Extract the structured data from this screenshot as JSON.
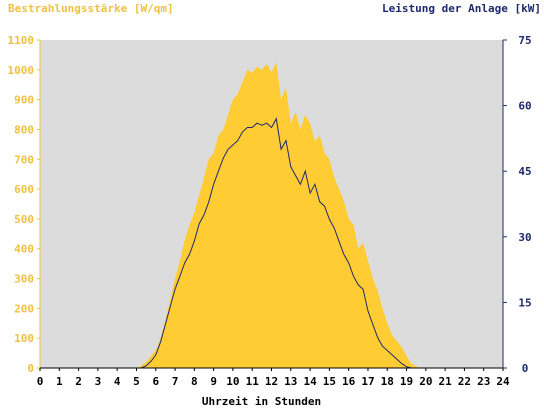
{
  "colors": {
    "background": "#ffffff",
    "plot_background": "#dcdcdc",
    "irradiance": "#ffcc33",
    "power": "#1f2a6e",
    "left_axis_text": "#f0c040",
    "right_axis_text": "#1f2a6e",
    "x_axis_text": "#000000"
  },
  "chart_data": {
    "type": "area",
    "title_left": "Bestrahlungsstärke [W/qm]",
    "title_right": "Leistung der Anlage [kW]",
    "xlabel": "Uhrzeit in Stunden",
    "x_ticks": [
      "0",
      "1",
      "2",
      "3",
      "4",
      "5",
      "6",
      "7",
      "8",
      "9",
      "10",
      "11",
      "12",
      "13",
      "14",
      "15",
      "16",
      "17",
      "18",
      "19",
      "20",
      "21",
      "22",
      "23",
      "24"
    ],
    "y_left_ticks": [
      "0",
      "100",
      "200",
      "300",
      "400",
      "500",
      "600",
      "700",
      "800",
      "900",
      "1000",
      "1100"
    ],
    "y_right_ticks": [
      "0",
      "15",
      "30",
      "45",
      "60",
      "75"
    ],
    "xlim": [
      0,
      24
    ],
    "ylim_left": [
      0,
      1100
    ],
    "ylim_right": [
      0,
      75
    ],
    "series": [
      {
        "name": "Bestrahlungsstärke",
        "axis": "left",
        "style": "area",
        "x": [
          0,
          5.0,
          5.25,
          5.5,
          5.75,
          6.0,
          6.25,
          6.5,
          6.75,
          7.0,
          7.25,
          7.5,
          7.75,
          8.0,
          8.25,
          8.5,
          8.75,
          9.0,
          9.25,
          9.5,
          9.75,
          10.0,
          10.25,
          10.5,
          10.75,
          11.0,
          11.25,
          11.5,
          11.75,
          12.0,
          12.25,
          12.5,
          12.75,
          13.0,
          13.25,
          13.5,
          13.75,
          14.0,
          14.25,
          14.5,
          14.75,
          15.0,
          15.25,
          15.5,
          15.75,
          16.0,
          16.25,
          16.5,
          16.75,
          17.0,
          17.25,
          17.5,
          17.75,
          18.0,
          18.25,
          18.5,
          18.75,
          19.0,
          19.25,
          19.5,
          19.75,
          20.0,
          24
        ],
        "y": [
          0,
          0,
          8,
          20,
          40,
          60,
          100,
          160,
          230,
          300,
          360,
          430,
          480,
          520,
          580,
          640,
          700,
          720,
          780,
          800,
          850,
          900,
          920,
          960,
          1000,
          990,
          1010,
          1000,
          1020,
          990,
          1025,
          900,
          940,
          820,
          860,
          800,
          850,
          820,
          760,
          780,
          720,
          700,
          640,
          600,
          560,
          500,
          480,
          400,
          420,
          360,
          300,
          260,
          200,
          150,
          110,
          90,
          70,
          40,
          15,
          5,
          0,
          0,
          0
        ]
      },
      {
        "name": "Leistung",
        "axis": "right",
        "style": "line",
        "x": [
          0,
          5.25,
          5.5,
          5.75,
          6.0,
          6.25,
          6.5,
          6.75,
          7.0,
          7.25,
          7.5,
          7.75,
          8.0,
          8.25,
          8.5,
          8.75,
          9.0,
          9.25,
          9.5,
          9.75,
          10.0,
          10.25,
          10.5,
          10.75,
          11.0,
          11.25,
          11.5,
          11.75,
          12.0,
          12.25,
          12.5,
          12.75,
          13.0,
          13.25,
          13.5,
          13.75,
          14.0,
          14.25,
          14.5,
          14.75,
          15.0,
          15.25,
          15.5,
          15.75,
          16.0,
          16.25,
          16.5,
          16.75,
          17.0,
          17.25,
          17.5,
          17.75,
          18.0,
          18.25,
          18.5,
          18.75,
          19.0,
          19.25,
          19.5,
          19.75,
          24
        ],
        "y": [
          0,
          0,
          0.5,
          1.5,
          3,
          6,
          10,
          14,
          18,
          21,
          24,
          26,
          29,
          33,
          35,
          38,
          42,
          45,
          48,
          50,
          51,
          52,
          54,
          55,
          55,
          56,
          55.5,
          56,
          55,
          57,
          50,
          52,
          46,
          44,
          42,
          45,
          40,
          42,
          38,
          37,
          34,
          32,
          29,
          26,
          24,
          21,
          19,
          18,
          13,
          10,
          7,
          5,
          4,
          3,
          2,
          1,
          0.3,
          0,
          0,
          0,
          0
        ]
      }
    ],
    "grid": false,
    "legend": "none"
  }
}
